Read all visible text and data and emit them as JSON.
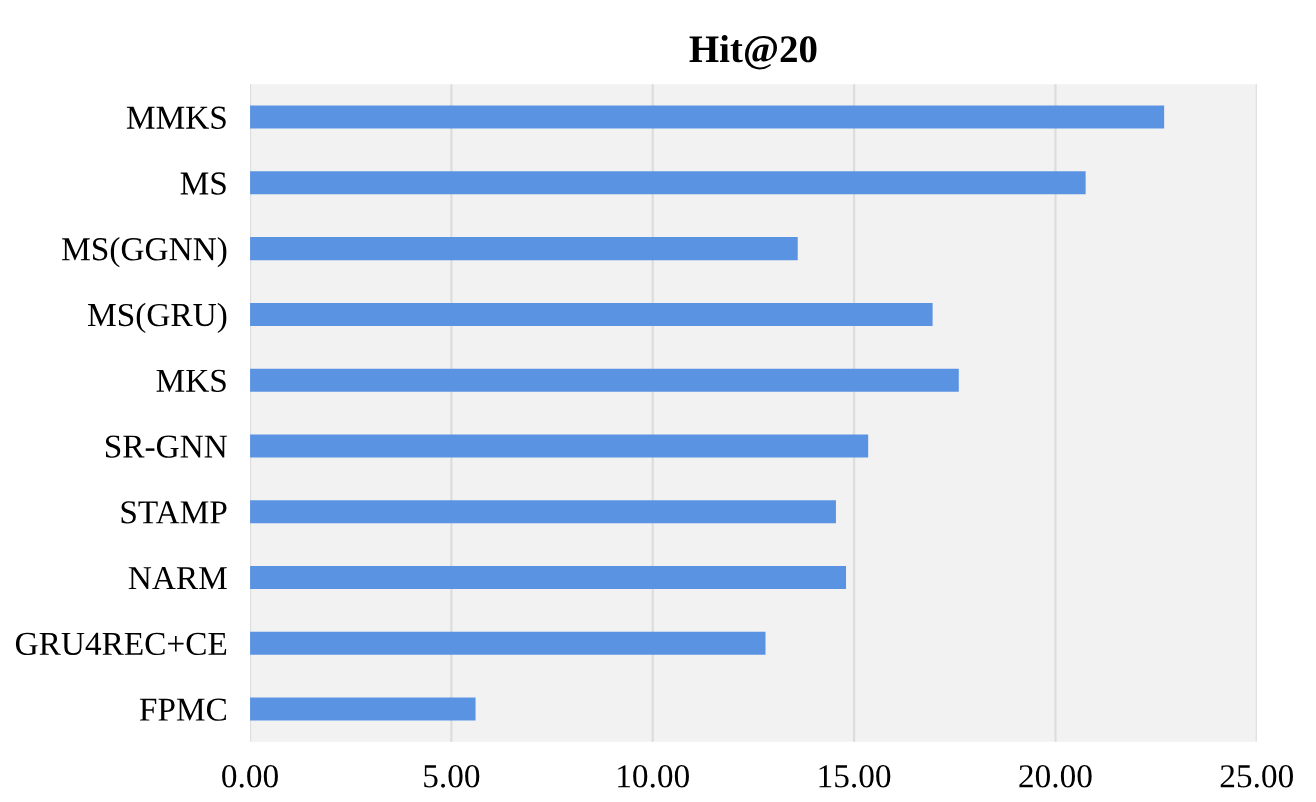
{
  "chart_data": {
    "type": "bar",
    "orientation": "horizontal",
    "title": "Hit@20",
    "categories": [
      "MMKS",
      "MS",
      "MS(GGNN)",
      "MS(GRU)",
      "MKS",
      "SR-GNN",
      "STAMP",
      "NARM",
      "GRU4REC+CE",
      "FPMC"
    ],
    "values": [
      22.7,
      20.75,
      13.6,
      16.95,
      17.6,
      15.35,
      14.55,
      14.8,
      12.8,
      5.6
    ],
    "color": "#5b93e3",
    "xlim": [
      0,
      25
    ],
    "xticks": [
      {
        "value": 0,
        "label": "0.00"
      },
      {
        "value": 5,
        "label": "5.00"
      },
      {
        "value": 10,
        "label": "10.00"
      },
      {
        "value": 15,
        "label": "15.00"
      },
      {
        "value": 20,
        "label": "20.00"
      },
      {
        "value": 25,
        "label": "25.00"
      }
    ],
    "grid": "x",
    "legend": false
  }
}
